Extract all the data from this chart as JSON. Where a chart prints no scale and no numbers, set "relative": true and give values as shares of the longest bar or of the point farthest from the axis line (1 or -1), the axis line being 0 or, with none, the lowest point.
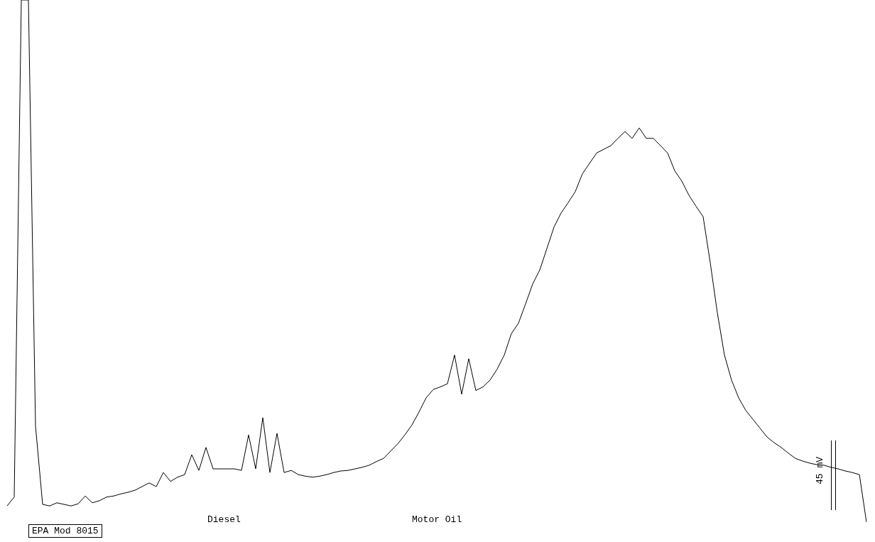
{
  "chart_data": {
    "type": "line",
    "relative": true,
    "marker": "none",
    "line_style": "solid",
    "categories": [
      null,
      null,
      null,
      null,
      null,
      null,
      null,
      null,
      null,
      null,
      null,
      null,
      null,
      null,
      null,
      null,
      null,
      null,
      null,
      null,
      null,
      null,
      null,
      null,
      null,
      null,
      null,
      null,
      null,
      null,
      null,
      null,
      null,
      null,
      null,
      null,
      null,
      null,
      null,
      null,
      null,
      null,
      null,
      null,
      null,
      null,
      null,
      null,
      null,
      null,
      null,
      null,
      null,
      null,
      null,
      null,
      null,
      null,
      null,
      null,
      null,
      null,
      null,
      null,
      null,
      null,
      null,
      null,
      null,
      null,
      null,
      null,
      null,
      null,
      null,
      null,
      null,
      null,
      null,
      null,
      null,
      null,
      null,
      null,
      null,
      null,
      null,
      null,
      null,
      null,
      null,
      null,
      null,
      null,
      null,
      null,
      null,
      null,
      null,
      null,
      null,
      null,
      null,
      null,
      null,
      null,
      null,
      null,
      null,
      null,
      null,
      null,
      null,
      null,
      null,
      null,
      null,
      null,
      null,
      null,
      null,
      null
    ],
    "series": [
      {
        "color": "#000000",
        "values": [
          0.031,
          0.048,
          1,
          1,
          0.184,
          0.034,
          0.031,
          0.037,
          0.034,
          0.031,
          0.035,
          0.05,
          0.037,
          0.041,
          0.048,
          0.05,
          0.054,
          0.057,
          0.061,
          0.068,
          0.075,
          0.068,
          0.095,
          0.078,
          0.086,
          0.091,
          0.129,
          0.099,
          0.143,
          0.102,
          0.102,
          0.102,
          0.102,
          0.099,
          0.167,
          0.102,
          0.2,
          0.095,
          0.17,
          0.095,
          0.099,
          0.091,
          0.088,
          0.086,
          0.088,
          0.091,
          0.095,
          0.098,
          0.099,
          0.102,
          0.105,
          0.109,
          0.116,
          0.122,
          0.136,
          0.15,
          0.167,
          0.186,
          0.211,
          0.238,
          0.254,
          0.259,
          0.265,
          0.32,
          0.245,
          0.313,
          0.252,
          0.259,
          0.272,
          0.293,
          0.32,
          0.361,
          0.381,
          0.418,
          0.456,
          0.483,
          0.524,
          0.565,
          0.592,
          0.612,
          0.633,
          0.667,
          0.687,
          0.707,
          0.714,
          0.721,
          0.735,
          0.748,
          0.735,
          0.755,
          0.735,
          0.735,
          0.721,
          0.707,
          0.673,
          0.653,
          0.626,
          0.605,
          0.585,
          0.497,
          0.401,
          0.32,
          0.272,
          0.238,
          0.214,
          0.197,
          0.18,
          0.163,
          0.152,
          0.143,
          0.132,
          0.122,
          0.117,
          0.113,
          0.11,
          0.109,
          0.105,
          0.102,
          0.098,
          0.095,
          0.091,
          0
        ]
      }
    ],
    "annotations": [
      "Diesel",
      "Motor Oil",
      "EPA Mod 8015",
      "45 mV"
    ]
  }
}
